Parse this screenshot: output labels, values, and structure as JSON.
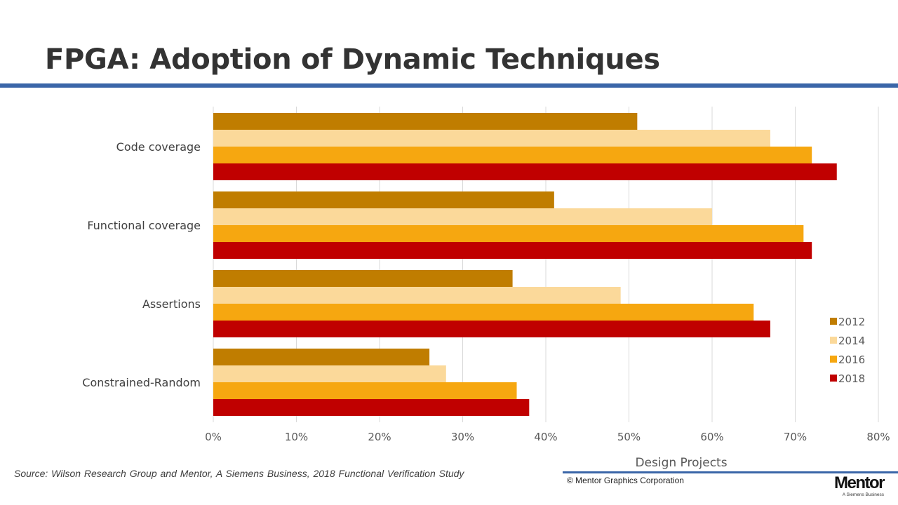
{
  "slide": {
    "title": "FPGA: Adoption of Dynamic Techniques",
    "source": "Source:  Wilson Research Group and Mentor, A Siemens Business, 2018 Functional Verification Study",
    "copyright": "© Mentor Graphics Corporation",
    "logo_text": "Mentor",
    "logo_tagline": "A Siemens Business",
    "accent_color": "#3a66a8"
  },
  "chart_data": {
    "type": "bar",
    "orientation": "horizontal",
    "categories": [
      "Code coverage",
      "Functional coverage",
      "Assertions",
      "Constrained-Random"
    ],
    "series": [
      {
        "name": "2012",
        "color": "#c07d00",
        "values": [
          0.51,
          0.41,
          0.36,
          0.26
        ]
      },
      {
        "name": "2014",
        "color": "#fbd99a",
        "values": [
          0.67,
          0.6,
          0.49,
          0.28
        ]
      },
      {
        "name": "2016",
        "color": "#f6a710",
        "values": [
          0.72,
          0.71,
          0.65,
          0.365
        ]
      },
      {
        "name": "2018",
        "color": "#c00000",
        "values": [
          0.75,
          0.72,
          0.67,
          0.38
        ]
      }
    ],
    "xlim": [
      0,
      0.8
    ],
    "xticks": [
      0,
      0.1,
      0.2,
      0.3,
      0.4,
      0.5,
      0.6,
      0.7,
      0.8
    ],
    "xtick_labels": [
      "0%",
      "10%",
      "20%",
      "30%",
      "40%",
      "50%",
      "60%",
      "70%",
      "80%"
    ],
    "xlabel": "Design Projects",
    "grid": true,
    "legend_position": "right"
  }
}
